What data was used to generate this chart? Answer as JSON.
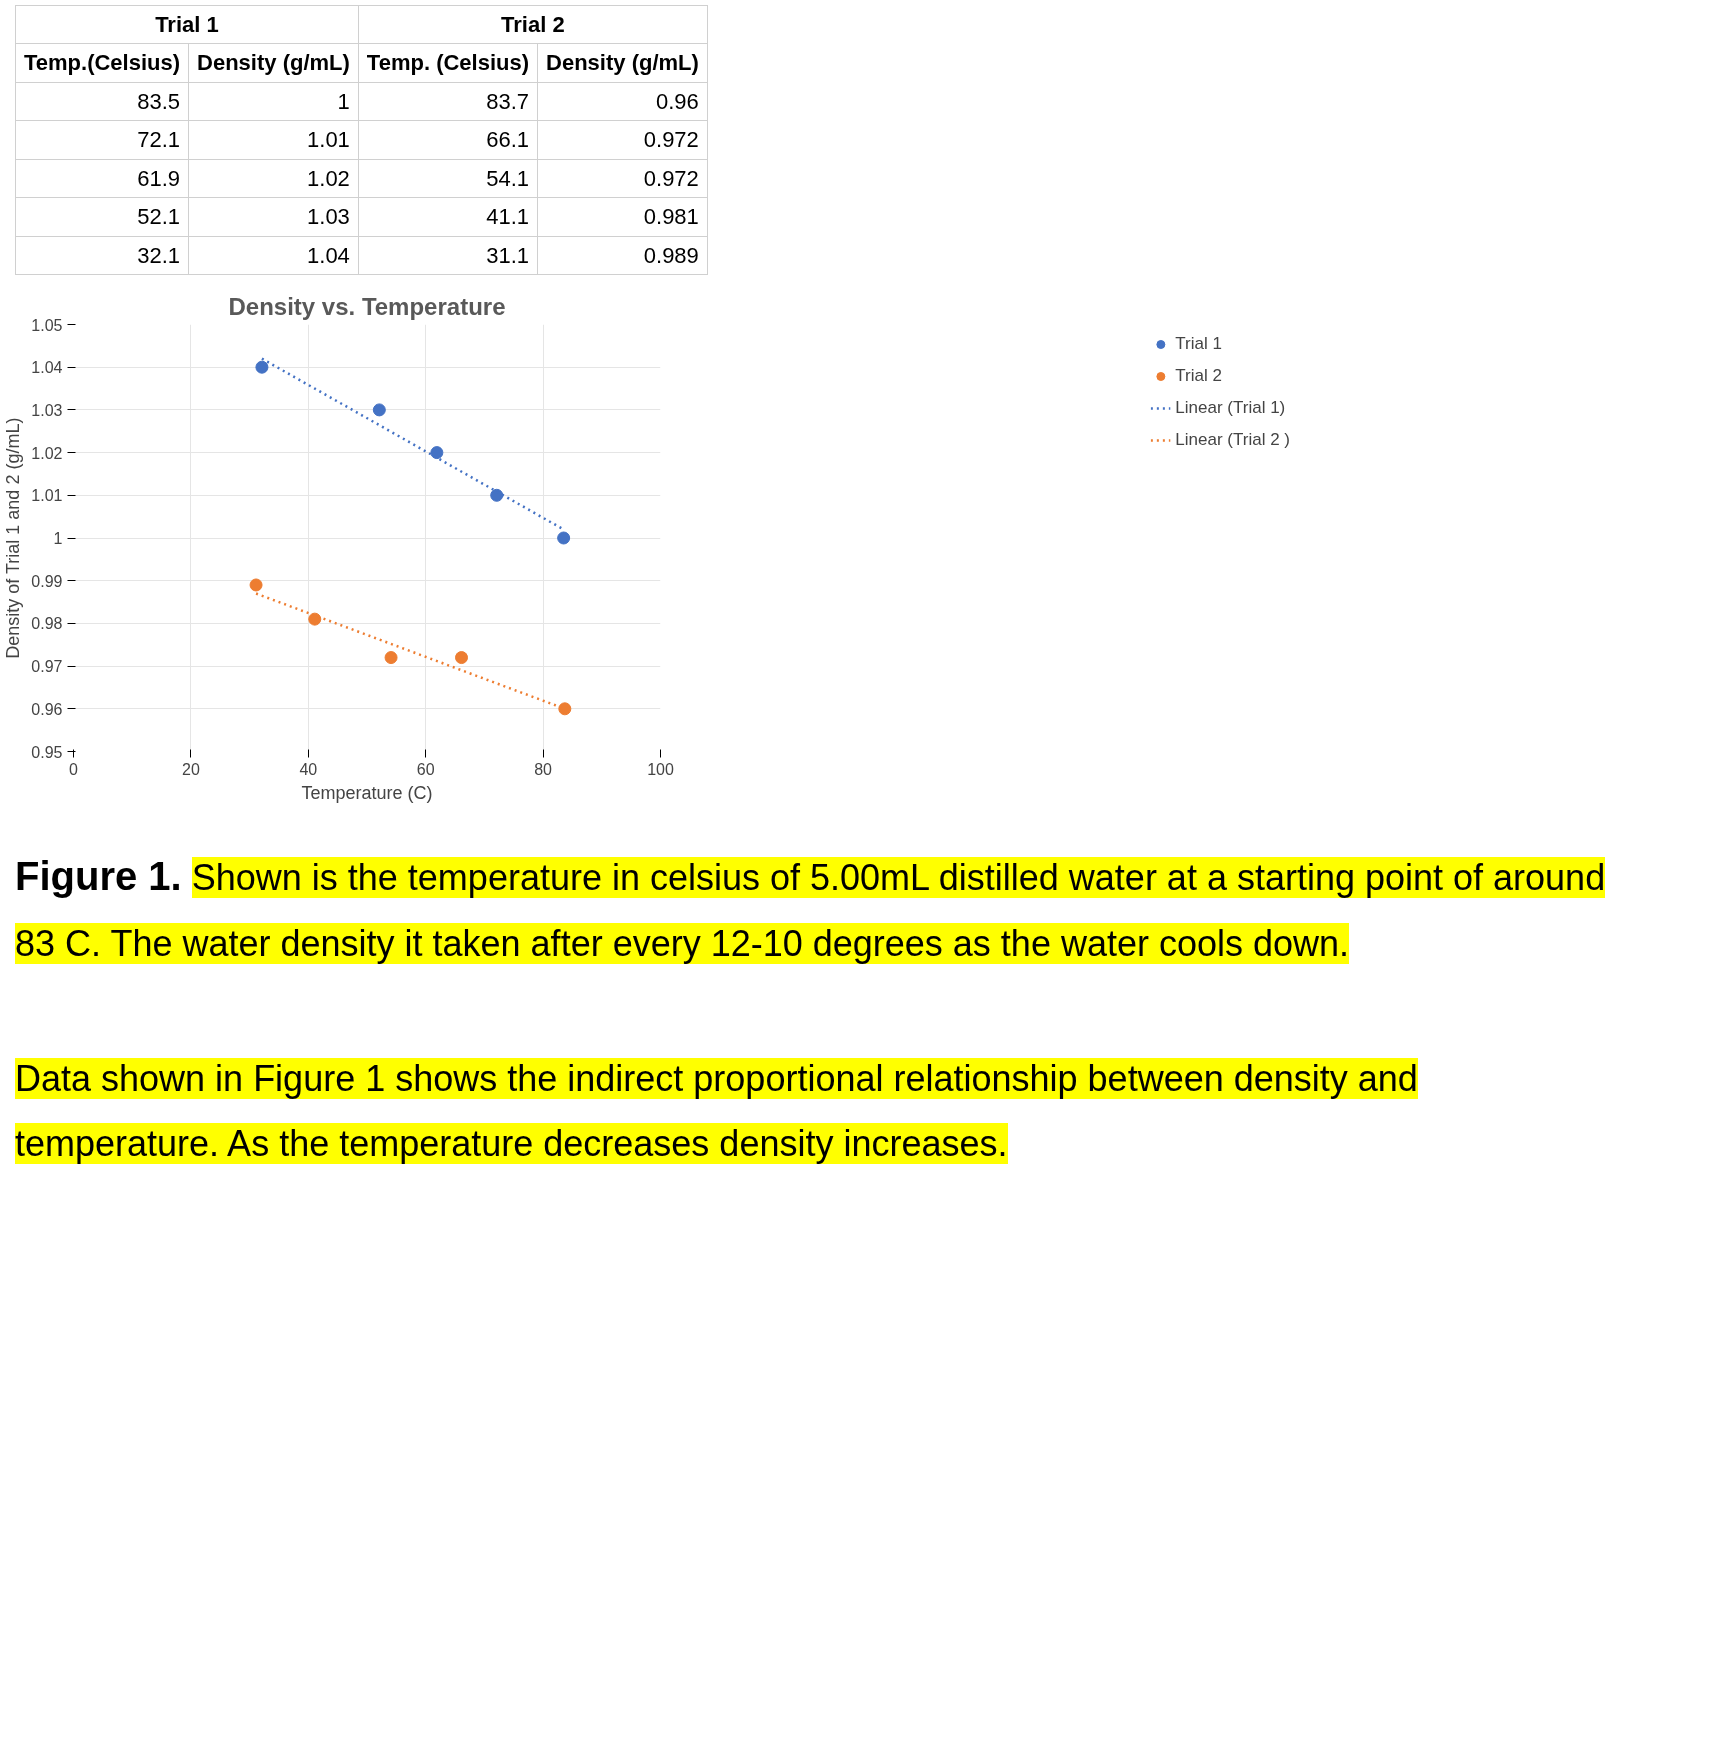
{
  "chart_data": {
    "type": "scatter",
    "title": "Density vs. Temperature",
    "xlabel": "Temperature (C)",
    "ylabel": "Density of Trial 1 and 2 (g/mL)",
    "xlim": [
      0,
      100
    ],
    "xticks": [
      0,
      20,
      40,
      60,
      80,
      100
    ],
    "ylim": [
      0.95,
      1.05
    ],
    "yticks": [
      0.95,
      0.96,
      0.97,
      0.98,
      0.99,
      1,
      1.01,
      1.02,
      1.03,
      1.04,
      1.05
    ],
    "grid": true,
    "legend": "right",
    "marker": "circle",
    "series": [
      {
        "name": "Trial 1",
        "color": "#4472c4",
        "x": [
          83.5,
          72.1,
          61.9,
          52.1,
          32.1
        ],
        "values": [
          1,
          1.01,
          1.02,
          1.03,
          1.04
        ]
      },
      {
        "name": "Trial 2",
        "color": "#ed7d31",
        "x": [
          83.7,
          66.1,
          54.1,
          41.1,
          31.1
        ],
        "values": [
          0.96,
          0.972,
          0.972,
          0.981,
          0.989
        ]
      },
      {
        "name": "Linear (Trial 1)",
        "type": "line",
        "line_style": "dotted",
        "marker": "none",
        "color": "#4472c4",
        "x": [
          32.1,
          83.5
        ],
        "values": [
          1.042,
          1.002
        ]
      },
      {
        "name": "Linear (Trial 2 )",
        "type": "line",
        "line_style": "dotted",
        "marker": "none",
        "color": "#ed7d31",
        "x": [
          31.1,
          83.7
        ],
        "values": [
          0.987,
          0.96
        ]
      }
    ],
    "annotations": [
      "Temp.(Celsius)",
      "Density (g/mL)",
      "Temp. (Celsius)",
      "Density (g/mL)",
      "83.5",
      "1",
      "83.7",
      "0.96",
      "72.1",
      "1.01",
      "66.1",
      "0.972",
      "61.9",
      "1.02",
      "54.1",
      "0.972",
      "52.1",
      "1.03",
      "41.1",
      "0.981",
      "32.1",
      "1.04",
      "31.1",
      "0.989",
      "Figure 1.",
      "Shown is the temperature in celsius of 5.00mL distilled water at a starting point of around 83 C. The water density it taken after every 12-10 degrees as the water cools down.",
      "Data shown in Figure 1 shows the indirect proportional relationship between density and temperature. As the temperature decreases density increases."
    ]
  }
}
